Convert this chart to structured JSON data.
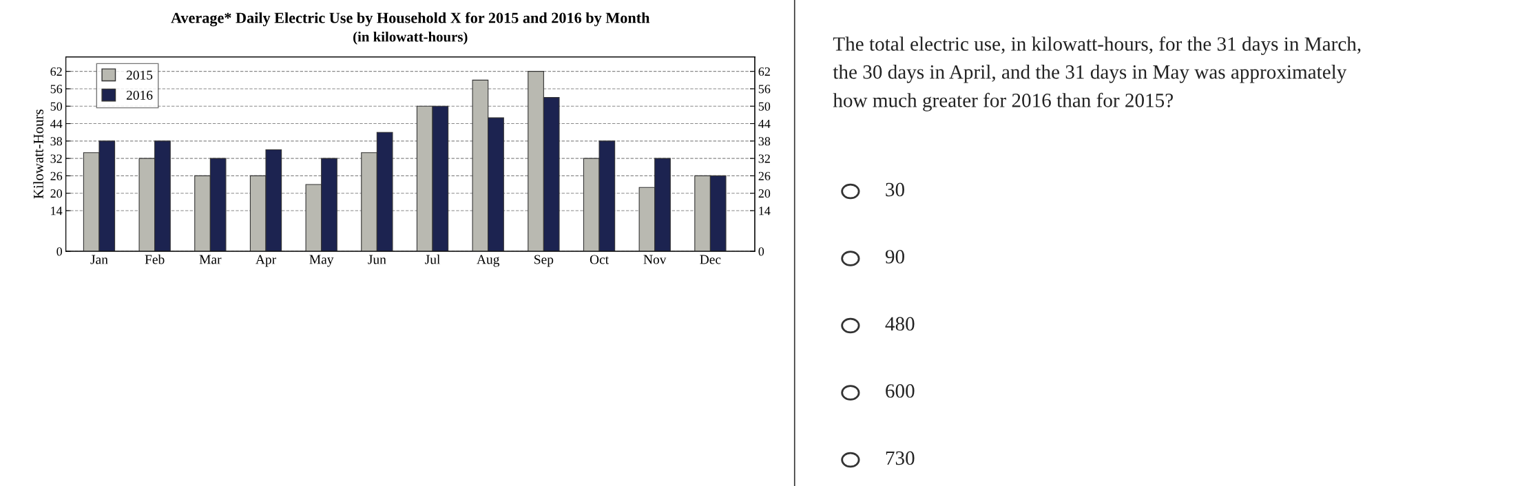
{
  "chart_data": {
    "type": "bar",
    "title": "Average* Daily Electric Use by Household X for 2015 and 2016 by Month",
    "subtitle": "(in kilowatt-hours)",
    "ylabel": "Kilowatt-Hours",
    "categories": [
      "Jan",
      "Feb",
      "Mar",
      "Apr",
      "May",
      "Jun",
      "Jul",
      "Aug",
      "Sep",
      "Oct",
      "Nov",
      "Dec"
    ],
    "series": [
      {
        "name": "2015",
        "color": "#b9b9b1",
        "values": [
          34,
          32,
          26,
          26,
          23,
          34,
          50,
          59,
          62,
          32,
          22,
          26
        ]
      },
      {
        "name": "2016",
        "color": "#1c2350",
        "values": [
          38,
          38,
          32,
          35,
          32,
          41,
          50,
          46,
          53,
          38,
          32,
          26
        ]
      }
    ],
    "ylim": [
      0,
      67
    ],
    "yticks": [
      0,
      14,
      20,
      26,
      32,
      38,
      44,
      50,
      56,
      62
    ],
    "y2lim": [
      0,
      67
    ],
    "y2ticks": [
      0,
      14,
      20,
      26,
      32,
      38,
      44,
      50,
      56,
      62
    ],
    "grid": "y",
    "legend": "top left",
    "annotations": [
      "The total electric use, in kilowatt-hours, for the 31 days in March,\nthe 30 days in April, and the 31 days in May was approximately\nhow much greater for 2016 than for 2015?",
      "30",
      "90",
      "480",
      "600",
      "730"
    ]
  }
}
